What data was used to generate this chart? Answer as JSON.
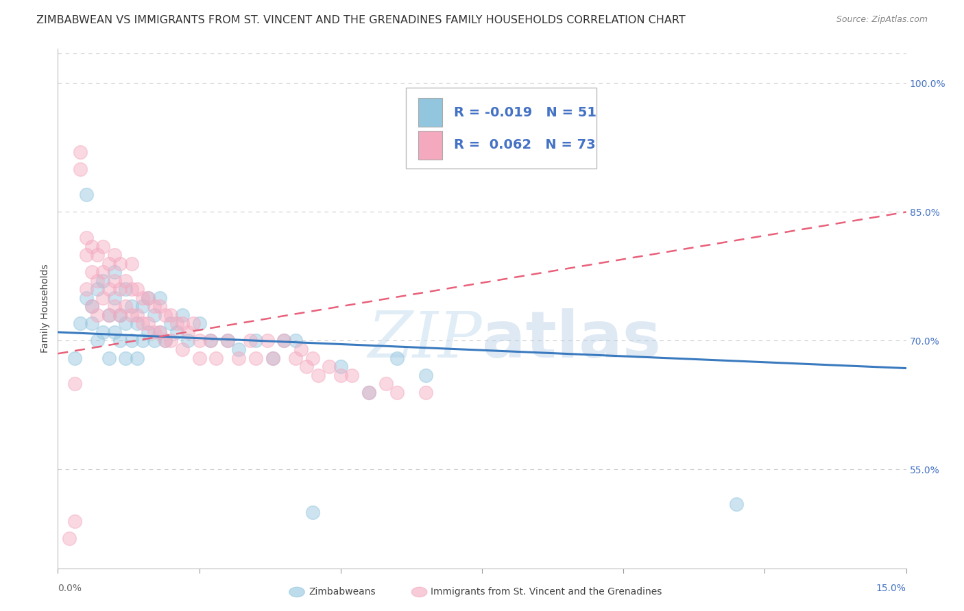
{
  "title": "ZIMBABWEAN VS IMMIGRANTS FROM ST. VINCENT AND THE GRENADINES FAMILY HOUSEHOLDS CORRELATION CHART",
  "source": "Source: ZipAtlas.com",
  "ylabel": "Family Households",
  "yticks": [
    "55.0%",
    "70.0%",
    "85.0%",
    "100.0%"
  ],
  "ytick_values": [
    0.55,
    0.7,
    0.85,
    1.0
  ],
  "xlim": [
    0.0,
    0.15
  ],
  "ylim": [
    0.435,
    1.04
  ],
  "watermark": "ZIPatlas",
  "blue_color": "#92c5de",
  "pink_color": "#f4a9bf",
  "blue_line_color": "#3a7abf",
  "pink_line_color": "#e8607a",
  "title_fontsize": 11.5,
  "axis_label_fontsize": 10,
  "tick_fontsize": 10,
  "legend_fontsize": 14,
  "blue_R": -0.019,
  "blue_N": 51,
  "pink_R": 0.062,
  "pink_N": 73,
  "blue_scatter_x": [
    0.003,
    0.004,
    0.005,
    0.005,
    0.006,
    0.006,
    0.007,
    0.007,
    0.008,
    0.008,
    0.009,
    0.009,
    0.01,
    0.01,
    0.01,
    0.011,
    0.011,
    0.012,
    0.012,
    0.012,
    0.013,
    0.013,
    0.014,
    0.014,
    0.015,
    0.015,
    0.016,
    0.016,
    0.017,
    0.017,
    0.018,
    0.018,
    0.019,
    0.02,
    0.021,
    0.022,
    0.023,
    0.025,
    0.027,
    0.03,
    0.032,
    0.035,
    0.038,
    0.04,
    0.042,
    0.045,
    0.05,
    0.055,
    0.06,
    0.065,
    0.12
  ],
  "blue_scatter_y": [
    0.68,
    0.72,
    0.75,
    0.87,
    0.72,
    0.74,
    0.7,
    0.76,
    0.71,
    0.77,
    0.68,
    0.73,
    0.71,
    0.75,
    0.78,
    0.7,
    0.73,
    0.68,
    0.72,
    0.76,
    0.7,
    0.74,
    0.68,
    0.72,
    0.7,
    0.74,
    0.71,
    0.75,
    0.7,
    0.73,
    0.71,
    0.75,
    0.7,
    0.72,
    0.71,
    0.73,
    0.7,
    0.72,
    0.7,
    0.7,
    0.69,
    0.7,
    0.68,
    0.7,
    0.7,
    0.5,
    0.67,
    0.64,
    0.68,
    0.66,
    0.51
  ],
  "pink_scatter_x": [
    0.002,
    0.003,
    0.003,
    0.004,
    0.004,
    0.005,
    0.005,
    0.005,
    0.006,
    0.006,
    0.006,
    0.007,
    0.007,
    0.007,
    0.008,
    0.008,
    0.008,
    0.009,
    0.009,
    0.009,
    0.01,
    0.01,
    0.01,
    0.011,
    0.011,
    0.011,
    0.012,
    0.012,
    0.013,
    0.013,
    0.013,
    0.014,
    0.014,
    0.015,
    0.015,
    0.016,
    0.016,
    0.017,
    0.017,
    0.018,
    0.018,
    0.019,
    0.019,
    0.02,
    0.02,
    0.021,
    0.022,
    0.022,
    0.023,
    0.024,
    0.025,
    0.025,
    0.027,
    0.028,
    0.03,
    0.032,
    0.034,
    0.035,
    0.037,
    0.038,
    0.04,
    0.042,
    0.043,
    0.044,
    0.045,
    0.046,
    0.048,
    0.05,
    0.052,
    0.055,
    0.058,
    0.06,
    0.065
  ],
  "pink_scatter_y": [
    0.47,
    0.65,
    0.49,
    0.92,
    0.9,
    0.8,
    0.76,
    0.82,
    0.78,
    0.81,
    0.74,
    0.77,
    0.8,
    0.73,
    0.78,
    0.81,
    0.75,
    0.76,
    0.79,
    0.73,
    0.77,
    0.8,
    0.74,
    0.76,
    0.79,
    0.73,
    0.77,
    0.74,
    0.76,
    0.79,
    0.73,
    0.76,
    0.73,
    0.75,
    0.72,
    0.75,
    0.72,
    0.74,
    0.71,
    0.74,
    0.71,
    0.73,
    0.7,
    0.73,
    0.7,
    0.72,
    0.72,
    0.69,
    0.71,
    0.72,
    0.7,
    0.68,
    0.7,
    0.68,
    0.7,
    0.68,
    0.7,
    0.68,
    0.7,
    0.68,
    0.7,
    0.68,
    0.69,
    0.67,
    0.68,
    0.66,
    0.67,
    0.66,
    0.66,
    0.64,
    0.65,
    0.64,
    0.64
  ]
}
